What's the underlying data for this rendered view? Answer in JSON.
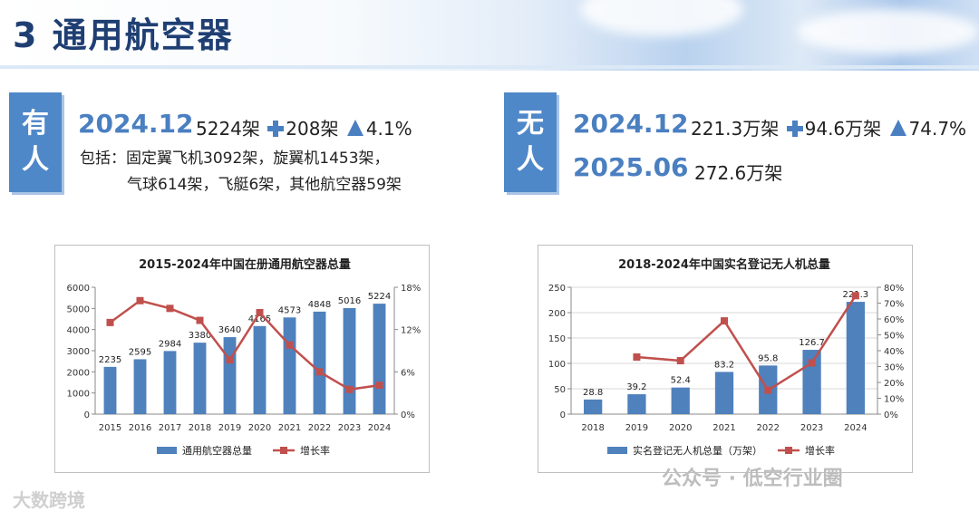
{
  "page": {
    "title": "3 通用航空器"
  },
  "manned": {
    "label_line1": "有",
    "label_line2": "人",
    "date": "2024.12",
    "count": "5224架",
    "increase": "208架",
    "growth": "4.1%",
    "detail_line1": "包括：固定翼飞机3092架，旋翼机1453架，",
    "detail_line2": "气球614架，飞艇6架，其他航空器59架"
  },
  "unmanned": {
    "label_line1": "无",
    "label_line2": "人",
    "date1": "2024.12",
    "count1": "221.3万架",
    "increase": "94.6万架",
    "growth": "74.7%",
    "date2": "2025.06",
    "count2": "272.6万架"
  },
  "chart_data": [
    {
      "type": "bar",
      "title": "2015-2024年中国在册通用航空器总量",
      "categories": [
        "2015",
        "2016",
        "2017",
        "2018",
        "2019",
        "2020",
        "2021",
        "2022",
        "2023",
        "2024"
      ],
      "series": [
        {
          "name": "通用航空器总量",
          "type": "bar",
          "axis": "left",
          "values": [
            2235,
            2595,
            2984,
            3380,
            3640,
            4165,
            4573,
            4848,
            5016,
            5224
          ],
          "labels": [
            "2235",
            "2595",
            "2984",
            "3380",
            "3640",
            "4165",
            "4573",
            "4848",
            "5016",
            "5224"
          ]
        },
        {
          "name": "增长率",
          "type": "line",
          "axis": "right",
          "values": [
            13.0,
            16.1,
            15.0,
            13.3,
            7.7,
            14.4,
            9.8,
            6.0,
            3.5,
            4.1
          ]
        }
      ],
      "ylim_left": [
        0,
        6000
      ],
      "yticks_left": [
        "0",
        "1000",
        "2000",
        "3000",
        "4000",
        "5000",
        "6000"
      ],
      "ylim_right": [
        0,
        18
      ],
      "yticks_right": [
        "0%",
        "6%",
        "12%",
        "18%"
      ],
      "grid": false,
      "legend": "bottom",
      "colors": {
        "bar": "#4f81bd",
        "line": "#c0504d"
      }
    },
    {
      "type": "bar",
      "title": "2018-2024年中国实名登记无人机总量",
      "categories": [
        "2018",
        "2019",
        "2020",
        "2021",
        "2022",
        "2023",
        "2024"
      ],
      "series": [
        {
          "name": "实名登记无人机总量（万架）",
          "type": "bar",
          "axis": "left",
          "values": [
            28.8,
            39.2,
            52.4,
            83.2,
            95.8,
            126.7,
            221.3
          ],
          "labels": [
            "28.8",
            "39.2",
            "52.4",
            "83.2",
            "95.8",
            "126.7",
            "221.3"
          ]
        },
        {
          "name": "增长率",
          "type": "line",
          "axis": "right",
          "values": [
            null,
            36,
            33.7,
            58.8,
            15.1,
            32.3,
            74.7
          ]
        }
      ],
      "ylim_left": [
        0,
        250
      ],
      "yticks_left": [
        "0",
        "50",
        "100",
        "150",
        "200",
        "250"
      ],
      "ylim_right": [
        0,
        80
      ],
      "yticks_right": [
        "0%",
        "10%",
        "20%",
        "30%",
        "40%",
        "50%",
        "60%",
        "70%",
        "80%"
      ],
      "grid": true,
      "legend": "bottom",
      "colors": {
        "bar": "#4f81bd",
        "line": "#c0504d"
      }
    }
  ],
  "watermarks": {
    "left": "大数跨境",
    "right": "公众号 · 低空行业圈"
  }
}
